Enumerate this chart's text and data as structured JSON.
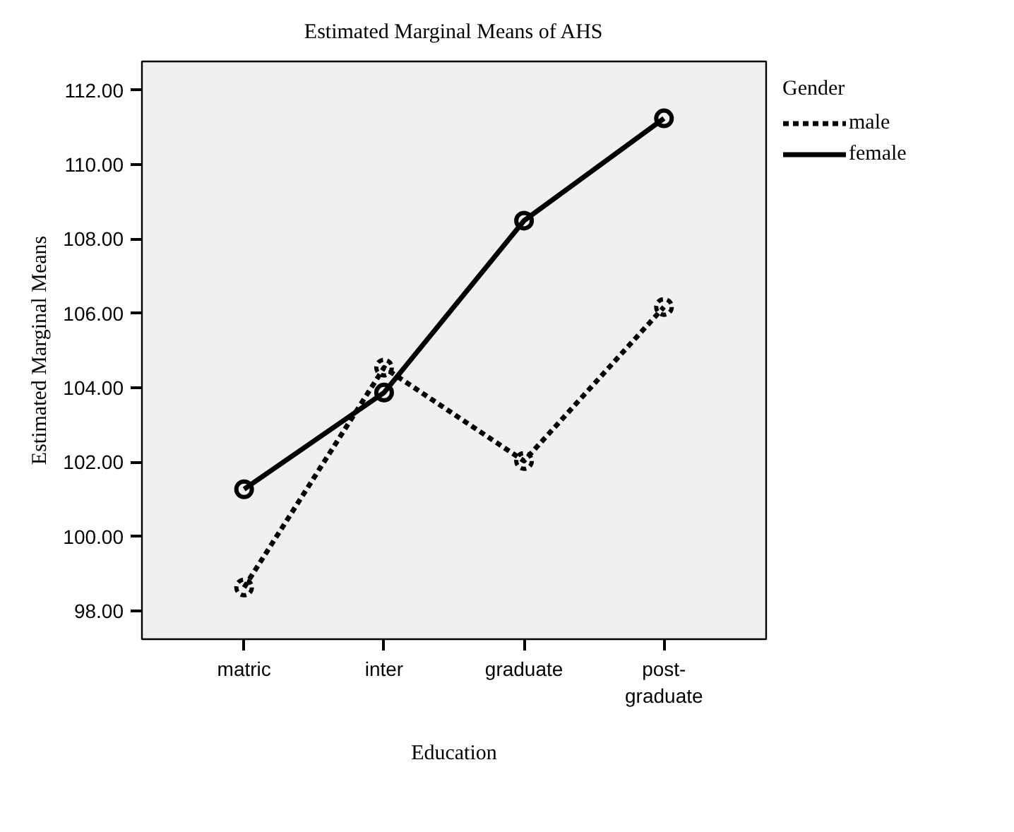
{
  "chart_data": {
    "type": "line",
    "title": "Estimated Marginal Means of AHS",
    "xlabel": "Education",
    "ylabel": "Estimated Marginal Means",
    "legend_title": "Gender",
    "categories": [
      "matric",
      "inter",
      "graduate",
      "post-graduate"
    ],
    "series": [
      {
        "name": "male",
        "color": "#000000",
        "values": [
          98.63,
          104.54,
          102.03,
          106.17
        ],
        "line_style": "dashed",
        "marker": "circle"
      },
      {
        "name": "female",
        "color": "#000000",
        "values": [
          101.27,
          103.87,
          108.49,
          111.24
        ],
        "line_style": "solid",
        "marker": "circle"
      }
    ],
    "ylim": [
      97.24,
      112.77
    ],
    "yticks": [
      {
        "value": 98,
        "label": "98.00"
      },
      {
        "value": 100,
        "label": "100.00"
      },
      {
        "value": 102,
        "label": "102.00"
      },
      {
        "value": 104,
        "label": "104.00"
      },
      {
        "value": 106,
        "label": "106.00"
      },
      {
        "value": 108,
        "label": "108.00"
      },
      {
        "value": 110,
        "label": "110.00"
      },
      {
        "value": 112,
        "label": "112.00"
      }
    ],
    "grid": false,
    "legend": "right"
  }
}
